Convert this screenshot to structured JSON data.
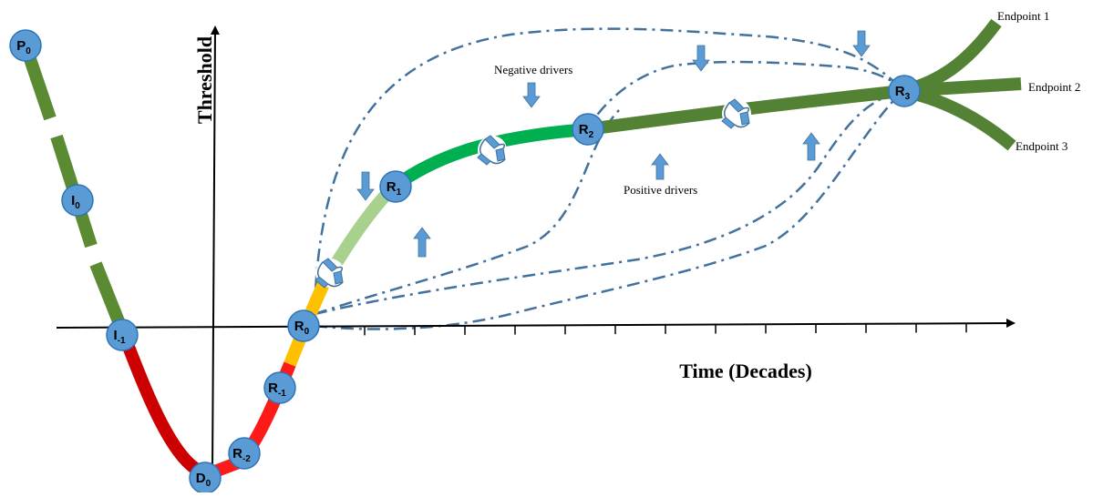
{
  "axes": {
    "y_label": "Threshold",
    "x_label": "Time (Decades)"
  },
  "nodes": [
    {
      "id": "P0",
      "base": "P",
      "sub": "0"
    },
    {
      "id": "I0",
      "base": "I",
      "sub": "0"
    },
    {
      "id": "I-1",
      "base": "I",
      "sub": "-1"
    },
    {
      "id": "D0",
      "base": "D",
      "sub": "0"
    },
    {
      "id": "R-2",
      "base": "R",
      "sub": "-2"
    },
    {
      "id": "R-1",
      "base": "R",
      "sub": "-1"
    },
    {
      "id": "R0",
      "base": "R",
      "sub": "0"
    },
    {
      "id": "R1",
      "base": "R",
      "sub": "1"
    },
    {
      "id": "R2",
      "base": "R",
      "sub": "2"
    },
    {
      "id": "R3",
      "base": "R",
      "sub": "3"
    }
  ],
  "annotations": {
    "negative_drivers": "Negative drivers",
    "positive_drivers": "Positive drivers",
    "endpoint_1": "Endpoint 1",
    "endpoint_2": "Endpoint 2",
    "endpoint_3": "Endpoint 3"
  },
  "colors": {
    "degradation_green": "#5a8a32",
    "degradation_red": "#cc0000",
    "recovery_red": "#ff1a1a",
    "recovery_orange": "#ffc000",
    "recovery_light_green": "#a9d18e",
    "recovery_green": "#00b050",
    "trajectory_green": "#548235",
    "node_fill": "#5b9bd5",
    "node_stroke": "#2e75b6",
    "arrow_blue": "#5b9bd5",
    "dashed_blue": "#41719c",
    "axis": "#000000"
  },
  "icons": [
    "recycle-icon",
    "recycle-icon",
    "recycle-icon",
    "recycle-icon"
  ]
}
